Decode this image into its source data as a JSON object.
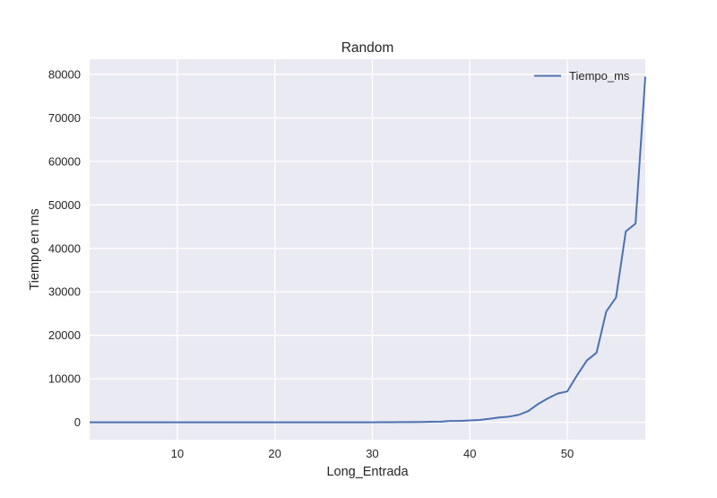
{
  "chart_data": {
    "type": "line",
    "title": "Random",
    "xlabel": "Long_Entrada",
    "ylabel": "Tiempo en ms",
    "xlim": [
      1,
      58
    ],
    "ylim": [
      -4000,
      83500
    ],
    "xticks": [
      10,
      20,
      30,
      40,
      50
    ],
    "yticks": [
      0,
      10000,
      20000,
      30000,
      40000,
      50000,
      60000,
      70000,
      80000
    ],
    "grid": true,
    "legend": "top-right",
    "colors": {
      "background": "#eaeaf2",
      "grid": "#ffffff",
      "line": "#4c72b0"
    },
    "x": [
      1,
      2,
      3,
      4,
      5,
      6,
      7,
      8,
      9,
      10,
      11,
      12,
      13,
      14,
      15,
      16,
      17,
      18,
      19,
      20,
      21,
      22,
      23,
      24,
      25,
      26,
      27,
      28,
      29,
      30,
      31,
      32,
      33,
      34,
      35,
      36,
      37,
      38,
      39,
      40,
      41,
      42,
      43,
      44,
      45,
      46,
      47,
      48,
      49,
      50,
      51,
      52,
      53,
      54,
      55,
      56,
      57,
      58
    ],
    "series": [
      {
        "name": "Tiempo_ms",
        "values": [
          0,
          0,
          0,
          0,
          0,
          0,
          0,
          0,
          0,
          0,
          0,
          0,
          0,
          0,
          0,
          0,
          0,
          0,
          0,
          0,
          0,
          0,
          0,
          0,
          0,
          0,
          0,
          0,
          0,
          0,
          20,
          30,
          40,
          60,
          80,
          120,
          150,
          300,
          300,
          450,
          550,
          800,
          1100,
          1300,
          1700,
          2600,
          4200,
          5500,
          6600,
          7100,
          10800,
          14200,
          16000,
          25500,
          28700,
          43900,
          45700,
          79500
        ]
      }
    ]
  }
}
